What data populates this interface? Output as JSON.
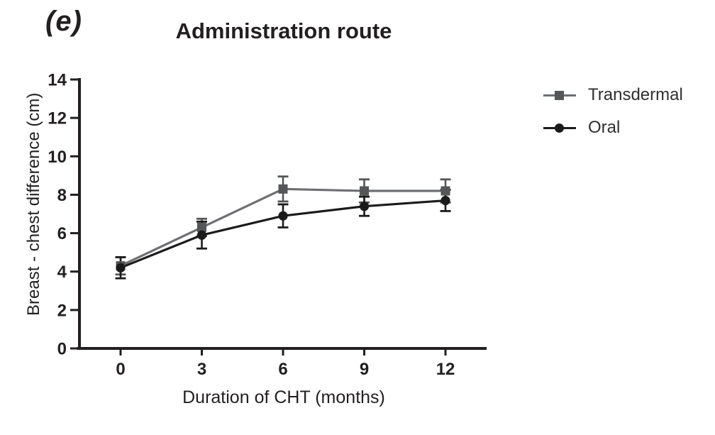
{
  "chart_data": {
    "type": "line",
    "panel_label": "(e)",
    "title": "Administration route",
    "xlabel": "Duration of CHT (months)",
    "ylabel": "Breast - chest difference (cm)",
    "x": [
      0,
      3,
      6,
      9,
      12
    ],
    "xtick_labels": [
      "0",
      "3",
      "6",
      "9",
      "12"
    ],
    "yticks": [
      0,
      2,
      4,
      6,
      8,
      10,
      12,
      14
    ],
    "ylim": [
      0,
      14
    ],
    "grid": false,
    "legend_position": "right-outside",
    "axis_color": "#231f20",
    "background_color": "#ffffff",
    "series": [
      {
        "name": "Transdermal",
        "marker": "square",
        "color": "#55565a",
        "line_color": "#6e6f72",
        "values": [
          4.3,
          6.3,
          8.3,
          8.2,
          8.2
        ],
        "errors": [
          0.45,
          0.45,
          0.65,
          0.6,
          0.6
        ]
      },
      {
        "name": "Oral",
        "marker": "circle",
        "color": "#1b1b1b",
        "line_color": "#1b1b1b",
        "values": [
          4.2,
          5.9,
          6.9,
          7.4,
          7.7
        ],
        "errors": [
          0.55,
          0.7,
          0.6,
          0.5,
          0.55
        ]
      }
    ]
  }
}
